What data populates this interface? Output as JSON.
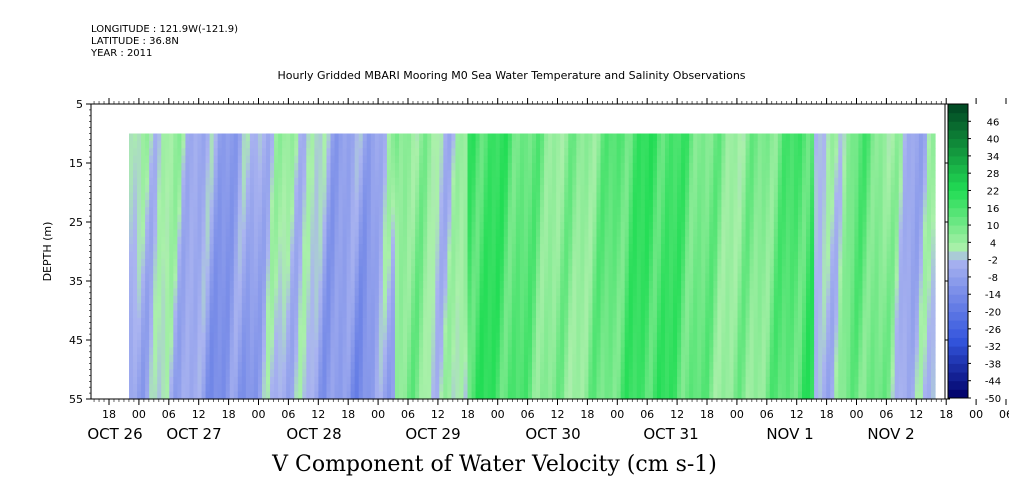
{
  "header": {
    "longitude": "LONGITUDE : 121.9W(-121.9)",
    "latitude": "LATITUDE : 36.8N",
    "year": "YEAR : 2011"
  },
  "chart_data": {
    "type": "heatmap",
    "title": "Hourly Gridded MBARI Mooring M0 Sea Water Temperature and Salinity Observations",
    "xlabel": "V Component of Water Velocity (cm s-1)",
    "ylabel": "DEPTH (m)",
    "ylim": [
      55,
      5
    ],
    "y_ticks": [
      5,
      15,
      25,
      35,
      45,
      55
    ],
    "x_hour_ticks": [
      "18",
      "00",
      "06",
      "12",
      "18",
      "00",
      "06",
      "12",
      "18",
      "00",
      "06",
      "12",
      "18",
      "00",
      "06",
      "12",
      "18",
      "00",
      "06",
      "12",
      "18",
      "00",
      "06",
      "12",
      "18",
      "00",
      "06",
      "12",
      "18",
      "00",
      "06",
      "12"
    ],
    "x_date_labels": [
      "OCT 26",
      "OCT 27",
      "OCT 28",
      "OCT 29",
      "OCT 30",
      "OCT 31",
      "NOV 1",
      "NOV 2"
    ],
    "data_depth_range": [
      10,
      55
    ],
    "colorbar": {
      "ticks": [
        46,
        40,
        34,
        28,
        22,
        16,
        10,
        4,
        -2,
        -8,
        -14,
        -20,
        -26,
        -32,
        -38,
        -44,
        -50
      ],
      "range": [
        -50,
        52
      ]
    },
    "colors": {
      "negative_strong": "#000066",
      "negative_mid": "#3355dd",
      "negative_weak": "#aab4f0",
      "positive_weak": "#aaf0aa",
      "positive_mid": "#22dd55",
      "positive_strong": "#004422"
    }
  }
}
